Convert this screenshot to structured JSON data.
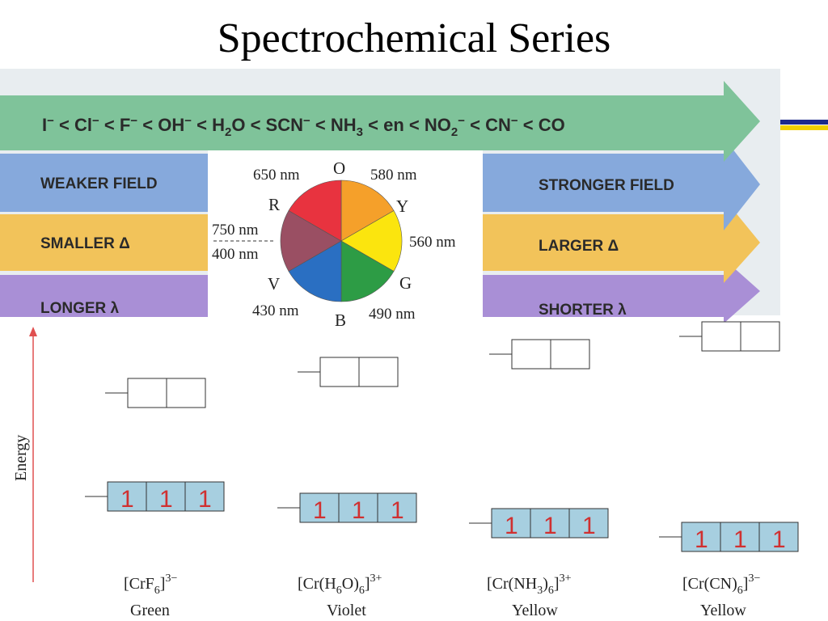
{
  "title": "Spectrochemical Series",
  "series": {
    "ligands": [
      "I",
      "Cl",
      "F",
      "OH",
      "H",
      "O",
      "SCN",
      "NH",
      "en",
      "NO",
      "CN",
      "CO"
    ],
    "separator": "<",
    "minus": "−",
    "sub2": "2",
    "sub3": "3"
  },
  "bands": {
    "weaker_field": "WEAKER FIELD",
    "stronger_field": "STRONGER FIELD",
    "smaller_delta": "SMALLER Δ",
    "larger_delta": "LARGER Δ",
    "longer_lambda": "LONGER λ",
    "shorter_lambda": "SHORTER λ"
  },
  "color_wheel": {
    "letters": {
      "O": "O",
      "Y": "Y",
      "G": "G",
      "B": "B",
      "V": "V",
      "R": "R"
    },
    "wavelengths": {
      "ro": "650 nm",
      "oy": "580 nm",
      "yg": "560 nm",
      "gb": "490 nm",
      "bv": "430 nm",
      "vr_top": "750 nm",
      "vr_bottom": "400 nm"
    },
    "colors": {
      "orange": "#f5a02a",
      "yellow": "#fbe50e",
      "green": "#2d9c45",
      "blue": "#2a6fc2",
      "violet": "#9a4f63",
      "red": "#e8333f"
    }
  },
  "energy_axis": {
    "label": "Energy",
    "color": "#e05050"
  },
  "electron_symbol": "1",
  "complexes": [
    {
      "formula_pre": "[CrF",
      "sub": "6",
      "close": "]",
      "charge": "3−",
      "color": "Green"
    },
    {
      "formula_pre": "[Cr(H",
      "sub": "6",
      "mid": "O)",
      "sub2": "6",
      "close": "]",
      "charge": "3+",
      "color": "Violet"
    },
    {
      "formula_pre": "[Cr(NH",
      "sub": "3",
      "mid": ")",
      "sub2": "6",
      "close": "]",
      "charge": "3+",
      "color": "Yellow"
    },
    {
      "formula_pre": "[Cr(CN)",
      "sub": "6",
      "close": "]",
      "charge": "3−",
      "color": "Yellow"
    }
  ],
  "theme": {
    "box_fill": "#a7cfe0",
    "top_band": "#7fc39a",
    "mid_band_blue": "#7fa6d8",
    "mid_band_orange": "#f2c35a",
    "bottom_band": "#9a7cc8",
    "accent_navy": "#1c2a8c",
    "accent_yellow": "#f0d000"
  }
}
